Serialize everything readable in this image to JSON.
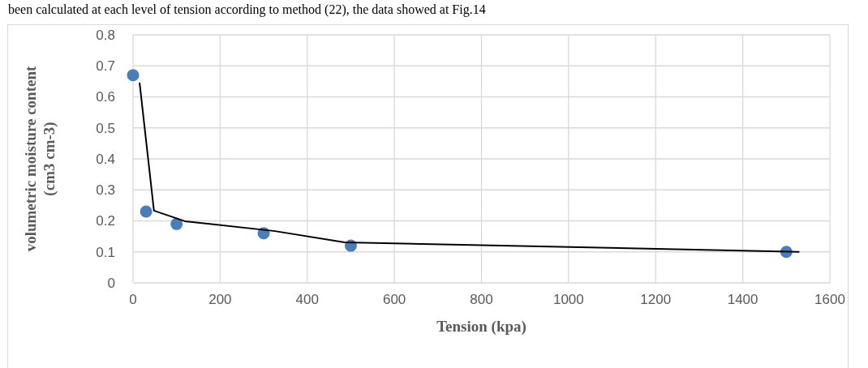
{
  "chart_data": {
    "type": "scatter",
    "xlabel": "Tension (kpa)",
    "ylabel": "volumetric moisture content\n(cm3 cm-3)",
    "annotations": [
      "been calculated at each level of tension according to method (22), the data showed at Fig.14"
    ],
    "xlim": [
      0,
      1600
    ],
    "xticks": [
      0,
      200,
      400,
      600,
      800,
      1000,
      1200,
      1400,
      1600
    ],
    "ylim": [
      0,
      0.8
    ],
    "yticks": [
      0,
      0.1,
      0.2,
      0.3,
      0.4,
      0.5,
      0.6,
      0.7,
      0.8
    ],
    "grid": true,
    "marker": "circle",
    "series": [
      {
        "color": "#4a7ebb",
        "x": [
          0,
          30,
          100,
          300,
          500,
          1500
        ],
        "values": [
          0.67,
          0.23,
          0.19,
          0.16,
          0.12,
          0.1
        ]
      },
      {
        "type": "line",
        "color": "#000000",
        "marker": "none",
        "x": [
          15,
          48,
          119,
          326,
          486,
          1530
        ],
        "values": [
          0.646,
          0.233,
          0.199,
          0.167,
          0.131,
          0.1
        ]
      }
    ]
  }
}
